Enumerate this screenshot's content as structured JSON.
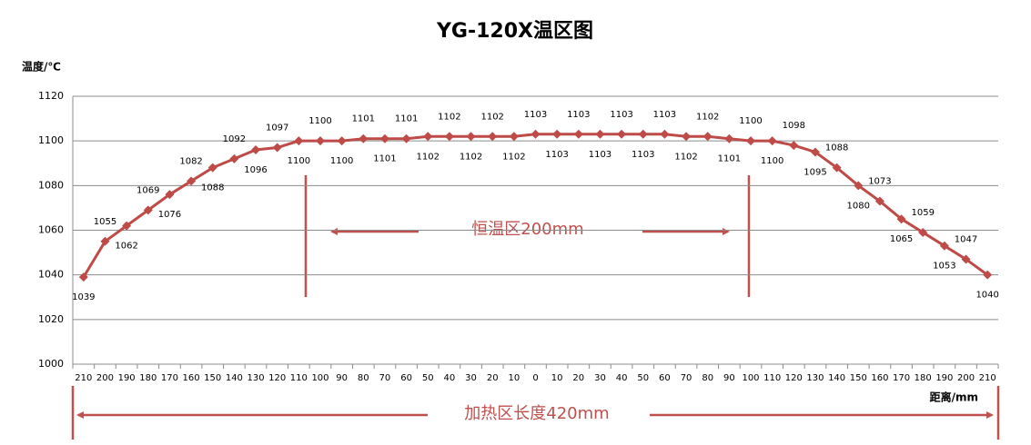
{
  "chart_data": {
    "type": "line",
    "title": "YG-120X温区图",
    "y_label": "温度/℃",
    "x_label": "距离/mm",
    "categories": [
      "210",
      "200",
      "190",
      "180",
      "170",
      "160",
      "150",
      "140",
      "130",
      "120",
      "110",
      "100",
      "90",
      "80",
      "70",
      "60",
      "50",
      "40",
      "30",
      "20",
      "10",
      "0",
      "10",
      "20",
      "30",
      "40",
      "50",
      "60",
      "70",
      "80",
      "90",
      "100",
      "110",
      "120",
      "130",
      "140",
      "150",
      "160",
      "170",
      "180",
      "190",
      "200",
      "210"
    ],
    "series": [
      {
        "name": "温度",
        "color": "#be4b48",
        "values": [
          1039,
          1055,
          1062,
          1069,
          1076,
          1082,
          1088,
          1092,
          1096,
          1097,
          1100,
          1100,
          1100,
          1101,
          1101,
          1101,
          1102,
          1102,
          1102,
          1102,
          1102,
          1103,
          1103,
          1103,
          1103,
          1103,
          1103,
          1103,
          1102,
          1102,
          1101,
          1100,
          1100,
          1098,
          1095,
          1088,
          1080,
          1073,
          1065,
          1059,
          1053,
          1047,
          1040
        ]
      }
    ],
    "ylim": [
      1000,
      1120
    ],
    "yticks": [
      1000,
      1020,
      1040,
      1060,
      1080,
      1100,
      1120
    ],
    "grid": true,
    "annotations": [
      "恒温区200mm",
      "加热区长度420mm"
    ]
  }
}
